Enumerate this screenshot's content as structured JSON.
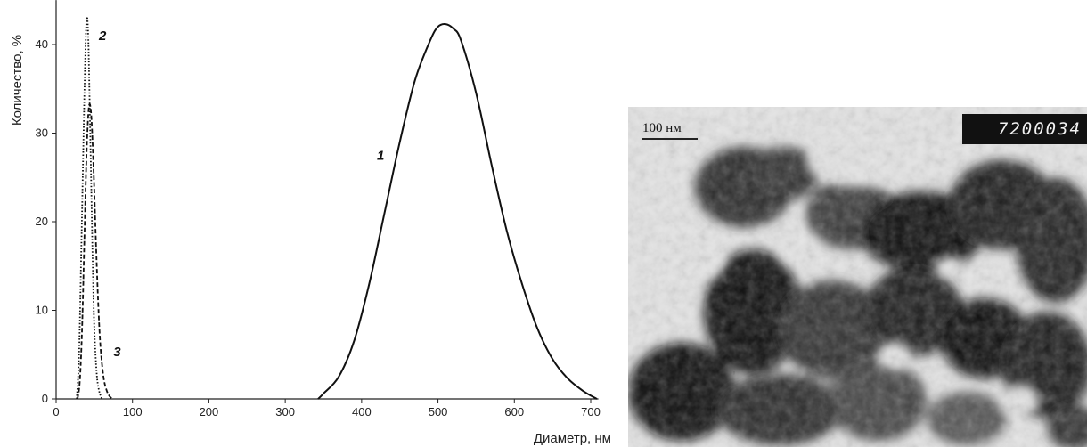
{
  "chart_data": {
    "type": "line",
    "title": "",
    "xlabel": "Диаметр, нм",
    "ylabel": "Количество, %",
    "xlim": [
      0,
      710
    ],
    "ylim": [
      0,
      43
    ],
    "x_ticks": [
      0,
      100,
      200,
      300,
      400,
      500,
      600,
      700
    ],
    "y_ticks": [
      0,
      10,
      20,
      30,
      40
    ],
    "grid": false,
    "legend": "none",
    "series": [
      {
        "name": "1",
        "style": "solid",
        "x": [
          343,
          350,
          370,
          390,
          410,
          430,
          450,
          470,
          490,
          500,
          510,
          520,
          530,
          550,
          570,
          590,
          610,
          630,
          650,
          670,
          690,
          708
        ],
        "y": [
          0,
          0.6,
          2.5,
          6.5,
          13,
          21,
          29,
          36,
          40.5,
          42,
          42.3,
          41.8,
          40.5,
          34.5,
          26.5,
          19,
          13,
          8,
          4.5,
          2.3,
          0.9,
          0
        ]
      },
      {
        "name": "2",
        "style": "dotted",
        "x": [
          27,
          30,
          33,
          36,
          38,
          40,
          42,
          44,
          46,
          48,
          50,
          53,
          56,
          60
        ],
        "y": [
          0,
          5,
          17,
          30,
          38,
          43,
          41,
          33,
          24,
          15,
          8,
          3,
          1,
          0
        ]
      },
      {
        "name": "3",
        "style": "dashed",
        "x": [
          28,
          31,
          34,
          37,
          40,
          43,
          46,
          49,
          52,
          55,
          58,
          62,
          66,
          70,
          74
        ],
        "y": [
          0,
          2,
          8,
          18,
          28,
          33,
          32,
          26,
          18,
          11,
          6,
          2.5,
          1,
          0.3,
          0
        ]
      }
    ]
  },
  "micrograph": {
    "scale_label": "100 нм",
    "image_id": "7200034"
  }
}
